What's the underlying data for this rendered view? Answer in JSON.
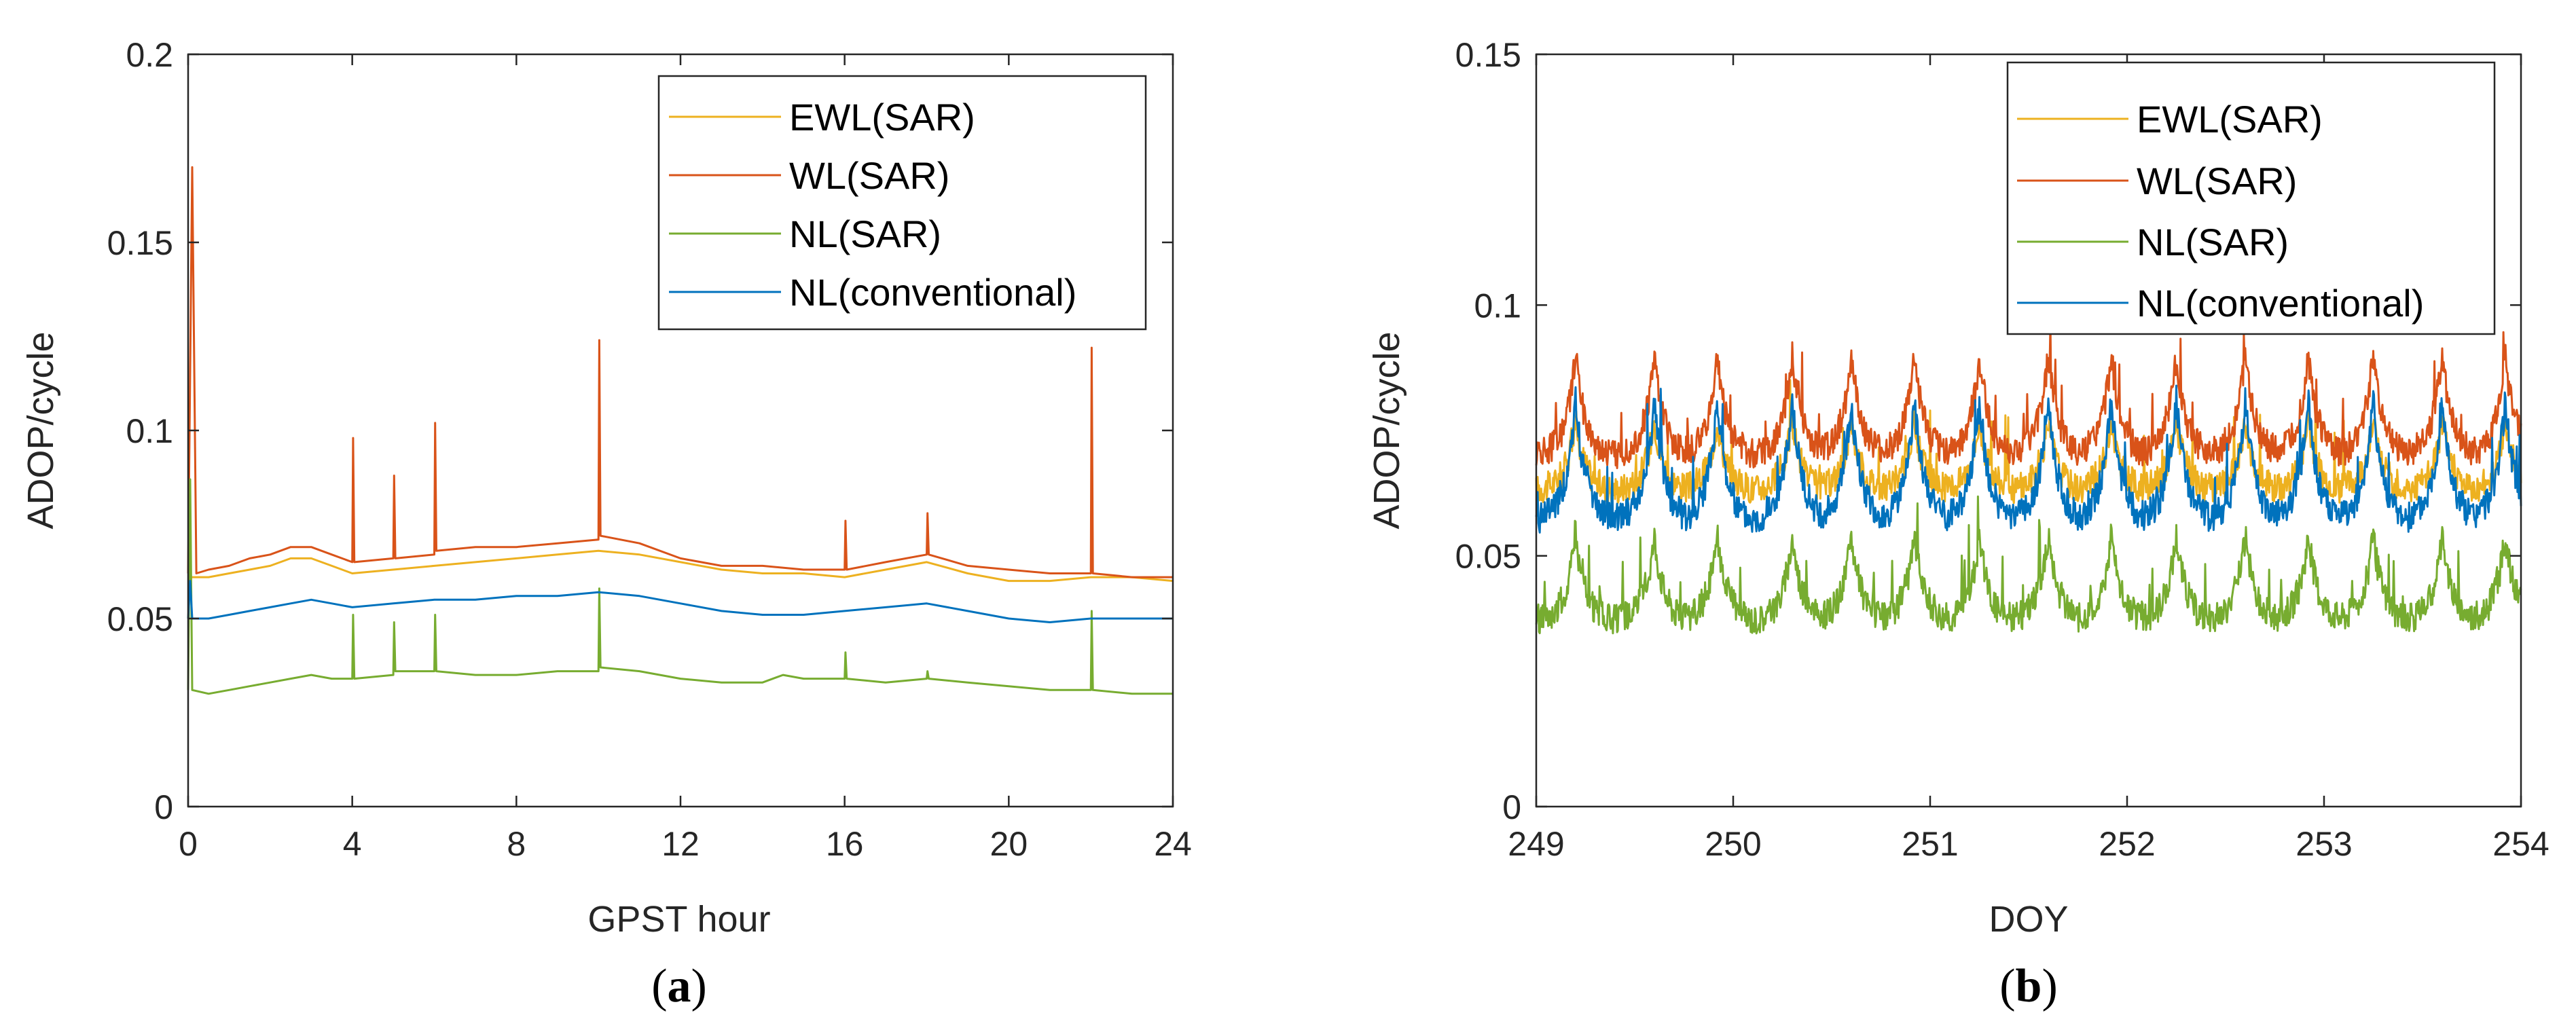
{
  "colors": {
    "ewl_sar": "#EDB120",
    "wl_sar": "#D95319",
    "nl_sar": "#77AC30",
    "nl_conventional": "#0072BD",
    "axis": "#262626"
  },
  "chart_data": [
    {
      "id": "a",
      "type": "line",
      "caption_open": "(",
      "caption_letter": "a",
      "caption_close": ")",
      "xlabel": "GPST hour",
      "ylabel": "ADOP/cycle",
      "xlim": [
        0,
        24
      ],
      "ylim": [
        0,
        0.2
      ],
      "xticks": [
        0,
        4,
        8,
        12,
        16,
        20,
        24
      ],
      "xtick_labels": [
        "0",
        "4",
        "8",
        "12",
        "16",
        "20",
        "24"
      ],
      "yticks": [
        0,
        0.05,
        0.1,
        0.15,
        0.2
      ],
      "ytick_labels": [
        "0",
        "0.05",
        "0.1",
        "0.15",
        "0.2"
      ],
      "legend_position": "top-right",
      "series": [
        {
          "name": "EWL(SAR)",
          "color_key": "ewl_sar",
          "x": [
            0,
            0.5,
            1,
            1.5,
            2,
            2.5,
            3,
            3.5,
            4,
            5,
            6,
            7,
            8,
            9,
            10,
            11,
            12,
            13,
            14,
            15,
            16,
            17,
            18,
            19,
            20,
            21,
            22,
            23,
            24
          ],
          "y": [
            0.061,
            0.061,
            0.062,
            0.063,
            0.064,
            0.066,
            0.066,
            0.064,
            0.062,
            0.063,
            0.064,
            0.065,
            0.066,
            0.067,
            0.068,
            0.067,
            0.065,
            0.063,
            0.062,
            0.062,
            0.061,
            0.063,
            0.065,
            0.062,
            0.06,
            0.06,
            0.061,
            0.061,
            0.06
          ]
        },
        {
          "name": "WL(SAR)",
          "color_key": "wl_sar",
          "x": [
            0,
            0.1,
            0.2,
            0.5,
            1,
            1.5,
            2,
            2.5,
            3,
            3.5,
            4,
            4.02,
            4.05,
            5,
            5.02,
            5.05,
            6,
            6.02,
            6.05,
            7,
            8,
            9,
            10,
            10.02,
            10.05,
            11,
            12,
            13,
            14,
            15,
            16,
            16.02,
            16.05,
            17,
            18,
            18.02,
            18.05,
            19,
            20,
            21,
            22,
            22.02,
            22.05,
            23,
            24
          ],
          "y": [
            0.062,
            0.17,
            0.062,
            0.063,
            0.064,
            0.066,
            0.067,
            0.069,
            0.069,
            0.067,
            0.065,
            0.098,
            0.065,
            0.066,
            0.088,
            0.066,
            0.067,
            0.102,
            0.068,
            0.069,
            0.069,
            0.07,
            0.071,
            0.124,
            0.072,
            0.07,
            0.066,
            0.064,
            0.064,
            0.063,
            0.063,
            0.076,
            0.063,
            0.065,
            0.067,
            0.078,
            0.067,
            0.064,
            0.063,
            0.062,
            0.062,
            0.122,
            0.062,
            0.061,
            0.061
          ]
        },
        {
          "name": "NL(SAR)",
          "color_key": "nl_sar",
          "x": [
            0,
            0.05,
            0.1,
            0.5,
            1,
            1.5,
            2,
            2.5,
            3,
            3.5,
            4,
            4.02,
            4.05,
            5,
            5.02,
            5.05,
            6,
            6.02,
            6.05,
            7,
            8,
            9,
            10,
            10.02,
            10.05,
            11,
            12,
            13,
            14,
            14.5,
            15,
            16,
            16.02,
            16.05,
            17,
            18,
            18.02,
            18.05,
            19,
            20,
            21,
            22,
            22.02,
            22.05,
            23,
            24
          ],
          "y": [
            0.031,
            0.087,
            0.031,
            0.03,
            0.031,
            0.032,
            0.033,
            0.034,
            0.035,
            0.034,
            0.034,
            0.051,
            0.034,
            0.035,
            0.049,
            0.036,
            0.036,
            0.051,
            0.036,
            0.035,
            0.035,
            0.036,
            0.036,
            0.058,
            0.037,
            0.036,
            0.034,
            0.033,
            0.033,
            0.035,
            0.034,
            0.034,
            0.041,
            0.034,
            0.033,
            0.034,
            0.036,
            0.034,
            0.033,
            0.032,
            0.031,
            0.031,
            0.052,
            0.031,
            0.03,
            0.03
          ]
        },
        {
          "name": "NL(conventional)",
          "color_key": "nl_conventional",
          "x": [
            0,
            0.05,
            0.1,
            0.5,
            1,
            1.5,
            2,
            2.5,
            3,
            3.5,
            4,
            5,
            6,
            7,
            8,
            9,
            10,
            11,
            12,
            13,
            14,
            15,
            16,
            17,
            18,
            19,
            20,
            21,
            22,
            23,
            24
          ],
          "y": [
            0.05,
            0.06,
            0.05,
            0.05,
            0.051,
            0.052,
            0.053,
            0.054,
            0.055,
            0.054,
            0.053,
            0.054,
            0.055,
            0.055,
            0.056,
            0.056,
            0.057,
            0.056,
            0.054,
            0.052,
            0.051,
            0.051,
            0.052,
            0.053,
            0.054,
            0.052,
            0.05,
            0.049,
            0.05,
            0.05,
            0.05
          ]
        }
      ]
    },
    {
      "id": "b",
      "type": "line",
      "caption_open": "(",
      "caption_letter": "b",
      "caption_close": ")",
      "xlabel": "DOY",
      "ylabel": "ADOP/cycle",
      "xlim": [
        249,
        254
      ],
      "ylim": [
        0,
        0.15
      ],
      "xticks": [
        249,
        250,
        251,
        252,
        253,
        254
      ],
      "xtick_labels": [
        "249",
        "250",
        "251",
        "252",
        "253",
        "254"
      ],
      "yticks": [
        0,
        0.05,
        0.1,
        0.15
      ],
      "ytick_labels": [
        "0",
        "0.05",
        "0.1",
        "0.15"
      ],
      "legend_position": "top-right",
      "series": [
        {
          "name": "EWL(SAR)",
          "color_key": "ewl_sar",
          "x": [
            249,
            254
          ],
          "base": 0.063,
          "peak_height": 0.014
        },
        {
          "name": "WL(SAR)",
          "color_key": "wl_sar",
          "x": [
            249,
            254
          ],
          "base": 0.07,
          "peak_height": 0.02
        },
        {
          "name": "NL(SAR)",
          "color_key": "nl_sar",
          "x": [
            249,
            254
          ],
          "base": 0.037,
          "peak_height": 0.017
        },
        {
          "name": "NL(conventional)",
          "color_key": "nl_conventional",
          "x": [
            249,
            254
          ],
          "base": 0.057,
          "peak_height": 0.024
        }
      ],
      "daily_peaks_doy": [
        249.2,
        249.6,
        249.92,
        250.3,
        250.6,
        250.92,
        251.25,
        251.6,
        251.92,
        252.25,
        252.6,
        252.92,
        253.25,
        253.6,
        253.92
      ]
    }
  ]
}
